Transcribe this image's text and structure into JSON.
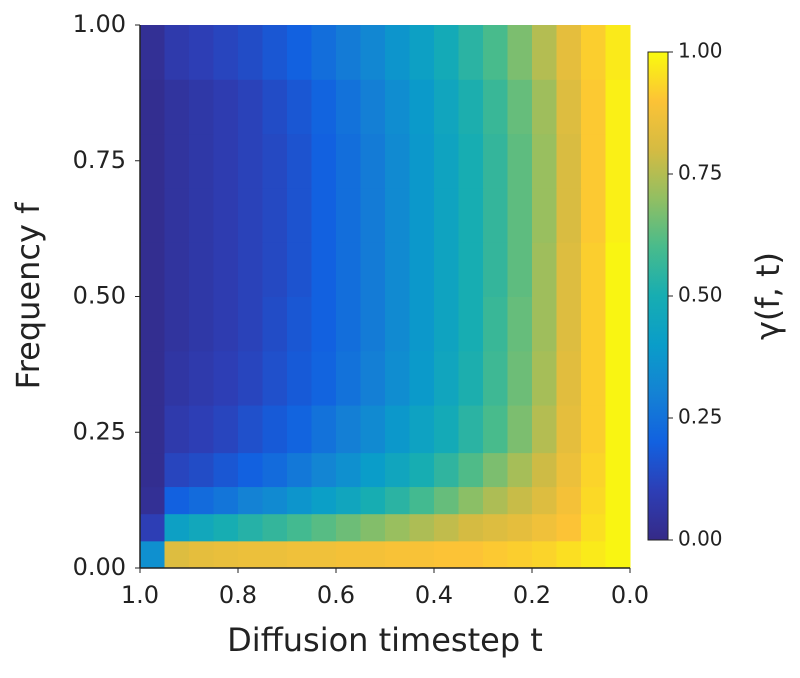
{
  "chart_data": {
    "type": "heatmap",
    "xlabel": "Diffusion timestep t",
    "ylabel": "Frequency f",
    "colorbar_label": "γ(f, t)",
    "x": [
      0.975,
      0.925,
      0.875,
      0.825,
      0.775,
      0.725,
      0.675,
      0.625,
      0.575,
      0.525,
      0.475,
      0.425,
      0.375,
      0.325,
      0.275,
      0.225,
      0.175,
      0.125,
      0.075,
      0.025
    ],
    "y": [
      0.025,
      0.075,
      0.125,
      0.175,
      0.25,
      0.35,
      0.45,
      0.55,
      0.65,
      0.75,
      0.85,
      0.95
    ],
    "z": [
      [
        0.35,
        0.82,
        0.84,
        0.85,
        0.86,
        0.86,
        0.87,
        0.87,
        0.88,
        0.88,
        0.89,
        0.89,
        0.9,
        0.9,
        0.91,
        0.92,
        0.93,
        0.95,
        0.97,
        0.99
      ],
      [
        0.1,
        0.42,
        0.46,
        0.5,
        0.53,
        0.56,
        0.59,
        0.62,
        0.65,
        0.68,
        0.71,
        0.74,
        0.77,
        0.8,
        0.82,
        0.84,
        0.87,
        0.9,
        0.95,
        0.99
      ],
      [
        0.03,
        0.2,
        0.23,
        0.26,
        0.3,
        0.33,
        0.37,
        0.41,
        0.45,
        0.5,
        0.54,
        0.59,
        0.64,
        0.69,
        0.74,
        0.78,
        0.82,
        0.88,
        0.94,
        0.99
      ],
      [
        0.02,
        0.12,
        0.14,
        0.17,
        0.2,
        0.23,
        0.27,
        0.31,
        0.35,
        0.4,
        0.45,
        0.5,
        0.55,
        0.61,
        0.67,
        0.73,
        0.79,
        0.86,
        0.93,
        0.99
      ],
      [
        0.02,
        0.08,
        0.1,
        0.12,
        0.15,
        0.18,
        0.21,
        0.25,
        0.29,
        0.33,
        0.38,
        0.43,
        0.48,
        0.54,
        0.6,
        0.67,
        0.75,
        0.84,
        0.92,
        0.99
      ],
      [
        0.02,
        0.06,
        0.08,
        0.1,
        0.12,
        0.15,
        0.18,
        0.21,
        0.25,
        0.29,
        0.34,
        0.39,
        0.45,
        0.51,
        0.58,
        0.65,
        0.73,
        0.83,
        0.92,
        0.99
      ],
      [
        0.02,
        0.05,
        0.07,
        0.09,
        0.11,
        0.14,
        0.17,
        0.2,
        0.24,
        0.28,
        0.33,
        0.38,
        0.44,
        0.5,
        0.57,
        0.64,
        0.72,
        0.82,
        0.92,
        0.99
      ],
      [
        0.02,
        0.05,
        0.07,
        0.09,
        0.11,
        0.13,
        0.16,
        0.2,
        0.24,
        0.28,
        0.33,
        0.38,
        0.44,
        0.5,
        0.56,
        0.63,
        0.72,
        0.82,
        0.92,
        0.99
      ],
      [
        0.02,
        0.05,
        0.07,
        0.09,
        0.11,
        0.13,
        0.16,
        0.2,
        0.24,
        0.28,
        0.33,
        0.38,
        0.44,
        0.5,
        0.56,
        0.63,
        0.71,
        0.81,
        0.91,
        0.98
      ],
      [
        0.02,
        0.05,
        0.07,
        0.09,
        0.11,
        0.13,
        0.16,
        0.2,
        0.24,
        0.28,
        0.33,
        0.38,
        0.44,
        0.5,
        0.56,
        0.63,
        0.71,
        0.81,
        0.91,
        0.98
      ],
      [
        0.02,
        0.05,
        0.07,
        0.09,
        0.11,
        0.14,
        0.17,
        0.21,
        0.25,
        0.29,
        0.34,
        0.39,
        0.45,
        0.51,
        0.57,
        0.64,
        0.72,
        0.82,
        0.91,
        0.98
      ],
      [
        0.03,
        0.08,
        0.1,
        0.12,
        0.14,
        0.17,
        0.2,
        0.24,
        0.28,
        0.32,
        0.37,
        0.42,
        0.48,
        0.54,
        0.6,
        0.67,
        0.75,
        0.84,
        0.92,
        0.97
      ]
    ],
    "xlim": [
      1,
      0
    ],
    "xticks": [
      {
        "value": 1,
        "label": "1.0"
      },
      0.8,
      0.6,
      0.4,
      0.2,
      {
        "value": 0,
        "label": "0.0"
      }
    ],
    "ylim": [
      0,
      1
    ],
    "yticks": [
      {
        "value": 0,
        "label": "0.00"
      },
      0.25,
      {
        "value": 0.5,
        "label": "0.50"
      },
      0.75,
      {
        "value": 1,
        "label": "1.00"
      }
    ],
    "clim": [
      0,
      1
    ],
    "cticks": [
      {
        "value": 0,
        "label": "0.00"
      },
      0.25,
      {
        "value": 0.5,
        "label": "0.50"
      },
      0.75,
      {
        "value": 1,
        "label": "1.00"
      }
    ],
    "colormap": [
      "#352a87",
      "#2d3eb5",
      "#1261e0",
      "#1482d4",
      "#0a9dc9",
      "#17adb2",
      "#48bb8c",
      "#92bf62",
      "#d5bb42",
      "#fcc336",
      "#f9fb0e"
    ]
  }
}
